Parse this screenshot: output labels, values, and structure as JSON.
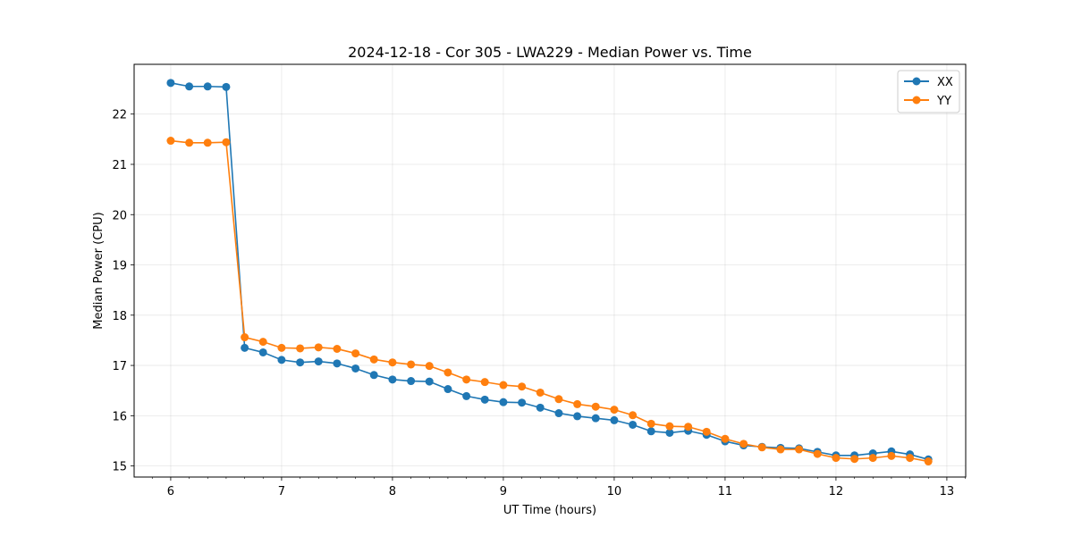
{
  "chart_data": {
    "type": "line",
    "title": "2024-12-18 - Cor 305 - LWA229 - Median Power vs. Time",
    "xlabel": "UT Time (hours)",
    "ylabel": "Median Power (CPU)",
    "xlim": [
      5.67,
      13.17
    ],
    "ylim": [
      14.78,
      22.99
    ],
    "xticks": [
      6,
      7,
      8,
      9,
      10,
      11,
      12,
      13
    ],
    "yticks": [
      15,
      16,
      17,
      18,
      19,
      20,
      21,
      22
    ],
    "grid": true,
    "legend_position": "top-right",
    "x": [
      6.0,
      6.167,
      6.333,
      6.5,
      6.667,
      6.833,
      7.0,
      7.167,
      7.333,
      7.5,
      7.667,
      7.833,
      8.0,
      8.167,
      8.333,
      8.5,
      8.667,
      8.833,
      9.0,
      9.167,
      9.333,
      9.5,
      9.667,
      9.833,
      10.0,
      10.167,
      10.333,
      10.5,
      10.667,
      10.833,
      11.0,
      11.167,
      11.333,
      11.5,
      11.667,
      11.833,
      12.0,
      12.167,
      12.333,
      12.5,
      12.667,
      12.833
    ],
    "series": [
      {
        "name": "XX",
        "color": "#1f77b4",
        "values": [
          22.62,
          22.55,
          22.55,
          22.54,
          17.35,
          17.26,
          17.11,
          17.06,
          17.08,
          17.04,
          16.94,
          16.81,
          16.72,
          16.69,
          16.68,
          16.53,
          16.39,
          16.32,
          16.27,
          16.26,
          16.16,
          16.05,
          15.99,
          15.95,
          15.91,
          15.82,
          15.69,
          15.66,
          15.7,
          15.62,
          15.49,
          15.41,
          15.38,
          15.36,
          15.35,
          15.28,
          15.21,
          15.21,
          15.25,
          15.29,
          15.23,
          15.13
        ]
      },
      {
        "name": "YY",
        "color": "#ff7f0e",
        "values": [
          21.47,
          21.43,
          21.43,
          21.44,
          17.56,
          17.47,
          17.35,
          17.34,
          17.36,
          17.33,
          17.24,
          17.12,
          17.06,
          17.02,
          16.99,
          16.86,
          16.72,
          16.67,
          16.61,
          16.58,
          16.46,
          16.33,
          16.23,
          16.18,
          16.12,
          16.01,
          15.84,
          15.79,
          15.78,
          15.68,
          15.54,
          15.44,
          15.37,
          15.33,
          15.33,
          15.24,
          15.16,
          15.14,
          15.16,
          15.2,
          15.16,
          15.09
        ]
      }
    ]
  }
}
